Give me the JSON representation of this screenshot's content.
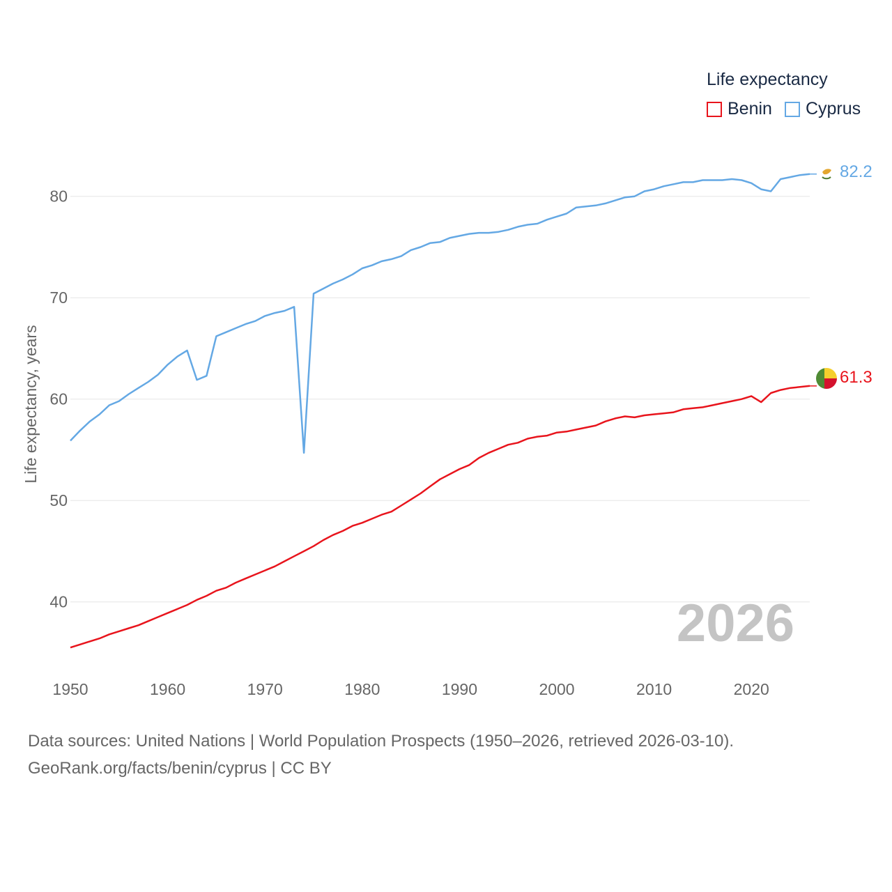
{
  "legend": {
    "title": "Life expectancy"
  },
  "sources": {
    "line1": "Data sources: United Nations | World Population Prospects (1950–2026, retrieved 2026-03-10).",
    "line2": "GeoRank.org/facts/benin/cyprus | CC BY"
  },
  "chart_data": {
    "type": "line",
    "title": "Life expectancy",
    "ylabel": "Life expectancy, years",
    "xlabel": "",
    "year_label": "2026",
    "xlim": [
      1950,
      2026
    ],
    "ylim": [
      34,
      85
    ],
    "x_ticks": [
      1950,
      1960,
      1970,
      1980,
      1990,
      2000,
      2010,
      2020
    ],
    "y_ticks": [
      40,
      50,
      60,
      70,
      80
    ],
    "grid": true,
    "legend_position": "top-right",
    "series": [
      {
        "name": "Benin",
        "color": "#e8141c",
        "end_label": "61.3",
        "flag_icon": "benin-flag-icon",
        "x": [
          1950,
          1951,
          1952,
          1953,
          1954,
          1955,
          1956,
          1957,
          1958,
          1959,
          1960,
          1961,
          1962,
          1963,
          1964,
          1965,
          1966,
          1967,
          1968,
          1969,
          1970,
          1971,
          1972,
          1973,
          1974,
          1975,
          1976,
          1977,
          1978,
          1979,
          1980,
          1981,
          1982,
          1983,
          1984,
          1985,
          1986,
          1987,
          1988,
          1989,
          1990,
          1991,
          1992,
          1993,
          1994,
          1995,
          1996,
          1997,
          1998,
          1999,
          2000,
          2001,
          2002,
          2003,
          2004,
          2005,
          2006,
          2007,
          2008,
          2009,
          2010,
          2011,
          2012,
          2013,
          2014,
          2015,
          2016,
          2017,
          2018,
          2019,
          2020,
          2021,
          2022,
          2023,
          2024,
          2025,
          2026
        ],
        "values": [
          35.5,
          35.8,
          36.1,
          36.4,
          36.8,
          37.1,
          37.4,
          37.7,
          38.1,
          38.5,
          38.9,
          39.3,
          39.7,
          40.2,
          40.6,
          41.1,
          41.4,
          41.9,
          42.3,
          42.7,
          43.1,
          43.5,
          44.0,
          44.5,
          45.0,
          45.5,
          46.1,
          46.6,
          47.0,
          47.5,
          47.8,
          48.2,
          48.6,
          48.9,
          49.5,
          50.1,
          50.7,
          51.4,
          52.1,
          52.6,
          53.1,
          53.5,
          54.2,
          54.7,
          55.1,
          55.5,
          55.7,
          56.1,
          56.3,
          56.4,
          56.7,
          56.8,
          57.0,
          57.2,
          57.4,
          57.8,
          58.1,
          58.3,
          58.2,
          58.4,
          58.5,
          58.6,
          58.7,
          59.0,
          59.1,
          59.2,
          59.4,
          59.6,
          59.8,
          60.0,
          60.3,
          59.7,
          60.6,
          60.9,
          61.1,
          61.2,
          61.3
        ]
      },
      {
        "name": "Cyprus",
        "color": "#64a8e4",
        "end_label": "82.2",
        "flag_icon": "cyprus-flag-icon",
        "x": [
          1950,
          1951,
          1952,
          1953,
          1954,
          1955,
          1956,
          1957,
          1958,
          1959,
          1960,
          1961,
          1962,
          1963,
          1964,
          1965,
          1966,
          1967,
          1968,
          1969,
          1970,
          1971,
          1972,
          1973,
          1974,
          1975,
          1976,
          1977,
          1978,
          1979,
          1980,
          1981,
          1982,
          1983,
          1984,
          1985,
          1986,
          1987,
          1988,
          1989,
          1990,
          1991,
          1992,
          1993,
          1994,
          1995,
          1996,
          1997,
          1998,
          1999,
          2000,
          2001,
          2002,
          2003,
          2004,
          2005,
          2006,
          2007,
          2008,
          2009,
          2010,
          2011,
          2012,
          2013,
          2014,
          2015,
          2016,
          2017,
          2018,
          2019,
          2020,
          2021,
          2022,
          2023,
          2024,
          2025,
          2026
        ],
        "values": [
          55.9,
          56.9,
          57.8,
          58.5,
          59.4,
          59.8,
          60.5,
          61.1,
          61.7,
          62.4,
          63.4,
          64.2,
          64.8,
          61.9,
          62.3,
          66.2,
          66.6,
          67.0,
          67.4,
          67.7,
          68.2,
          68.5,
          68.7,
          69.1,
          54.7,
          70.4,
          70.9,
          71.4,
          71.8,
          72.3,
          72.9,
          73.2,
          73.6,
          73.8,
          74.1,
          74.7,
          75.0,
          75.4,
          75.5,
          75.9,
          76.1,
          76.3,
          76.4,
          76.4,
          76.5,
          76.7,
          77.0,
          77.2,
          77.3,
          77.7,
          78.0,
          78.3,
          78.9,
          79.0,
          79.1,
          79.3,
          79.6,
          79.9,
          80.0,
          80.5,
          80.7,
          81.0,
          81.2,
          81.4,
          81.4,
          81.6,
          81.6,
          81.6,
          81.7,
          81.6,
          81.3,
          80.7,
          80.5,
          81.7,
          81.9,
          82.1,
          82.2
        ]
      }
    ]
  }
}
